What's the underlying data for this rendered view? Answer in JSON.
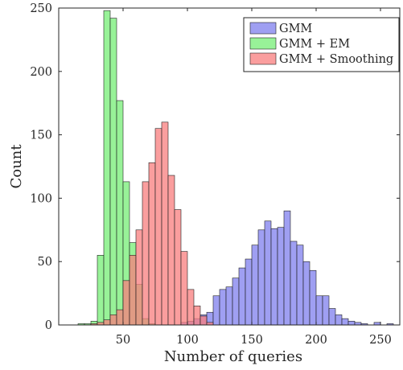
{
  "chart_data": {
    "type": "bar",
    "subtype": "overlaid-histogram",
    "title": "",
    "xlabel": "Number of queries",
    "ylabel": "Count",
    "xlim": [
      0,
      265
    ],
    "ylim": [
      0,
      250
    ],
    "xticks": [
      50,
      100,
      150,
      200,
      250
    ],
    "yticks": [
      0,
      50,
      100,
      150,
      200,
      250
    ],
    "bin_width": 5,
    "grid": false,
    "legend_position": "top-right",
    "series": [
      {
        "name": "GMM",
        "color": "#7f7fee",
        "bin_starts": [
          95,
          100,
          105,
          110,
          115,
          120,
          125,
          130,
          135,
          140,
          145,
          150,
          155,
          160,
          165,
          170,
          175,
          180,
          185,
          190,
          195,
          200,
          205,
          210,
          215,
          220,
          225,
          230,
          235,
          240,
          245,
          250,
          255
        ],
        "values": [
          2,
          3,
          5,
          8,
          10,
          23,
          28,
          30,
          37,
          45,
          52,
          63,
          75,
          82,
          76,
          77,
          90,
          66,
          63,
          50,
          43,
          23,
          23,
          13,
          8,
          5,
          3,
          2,
          1,
          0,
          2,
          0,
          1
        ]
      },
      {
        "name": "GMM + EM",
        "color": "#76ee76",
        "bin_starts": [
          15,
          20,
          25,
          30,
          35,
          40,
          45,
          50,
          55,
          60,
          65,
          70
        ],
        "values": [
          1,
          1,
          3,
          55,
          248,
          242,
          177,
          113,
          65,
          32,
          5,
          1
        ]
      },
      {
        "name": "GMM + Smoothing",
        "color": "#f87d7d",
        "bin_starts": [
          25,
          30,
          35,
          40,
          45,
          50,
          55,
          60,
          65,
          70,
          75,
          80,
          85,
          90,
          95,
          100,
          105,
          110,
          115
        ],
        "values": [
          1,
          2,
          4,
          8,
          12,
          35,
          55,
          75,
          113,
          128,
          155,
          160,
          118,
          91,
          58,
          28,
          15,
          7,
          2
        ]
      }
    ]
  }
}
